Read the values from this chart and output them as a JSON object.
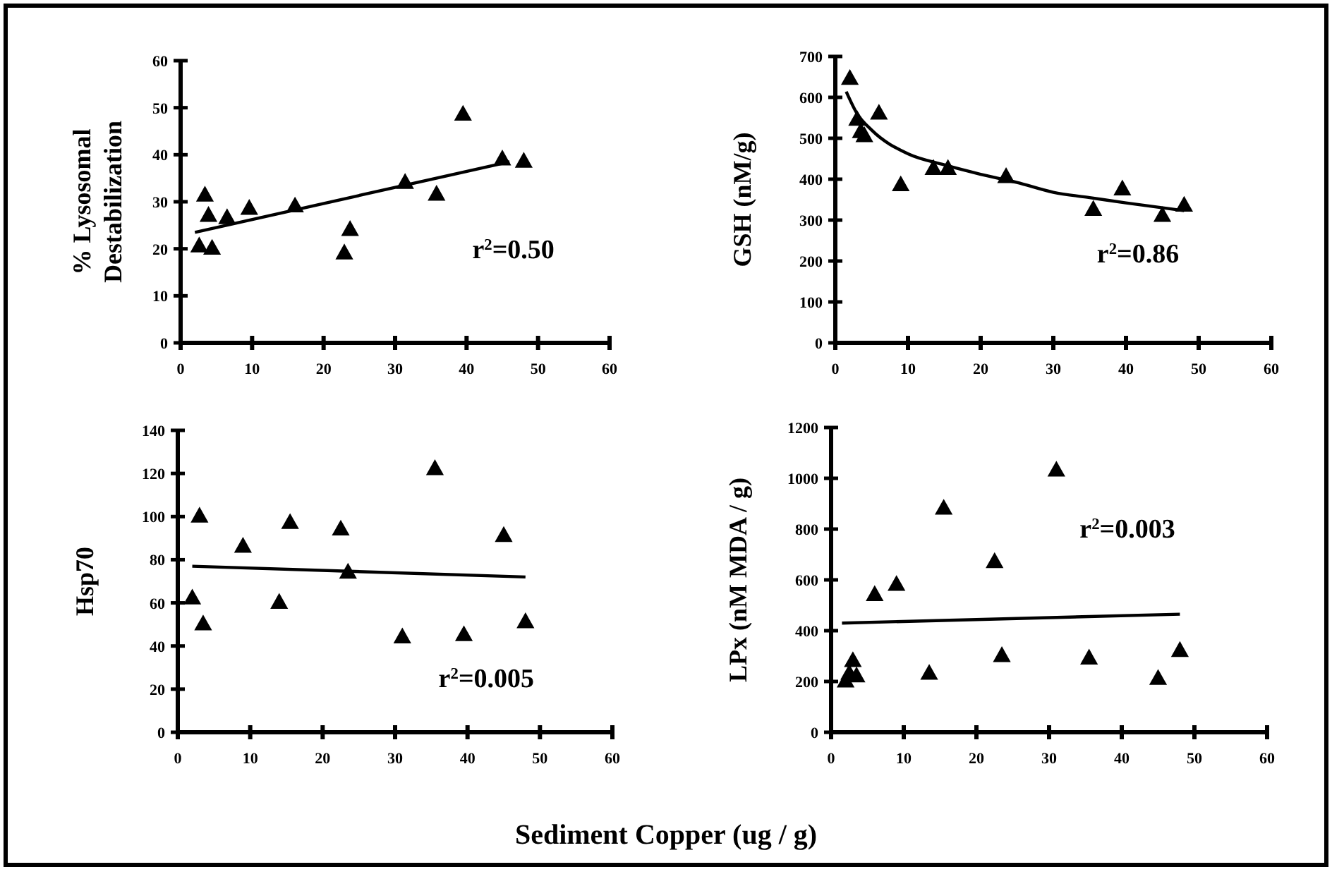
{
  "chart_data": [
    {
      "type": "scatter",
      "ylabel": "% Lysosomal Destabilization",
      "xlim": [
        0,
        60
      ],
      "xticks": [
        0,
        10,
        20,
        30,
        40,
        50,
        60
      ],
      "ylim": [
        0,
        60
      ],
      "yticks": [
        0,
        10,
        20,
        30,
        40,
        50,
        60
      ],
      "annotations": [
        "r$^{2}$=0.50"
      ],
      "series": [
        {
          "color": "#000000",
          "marker": "triangle",
          "x": [
            2.6,
            3.4,
            3.9,
            4.4,
            6.5,
            9.6,
            16,
            22.9,
            23.7,
            31.4,
            35.8,
            39.5,
            45,
            48
          ],
          "values": [
            20.5,
            31.3,
            27,
            20,
            26.5,
            28.5,
            29,
            19,
            24,
            34,
            31.5,
            48.5,
            39,
            38.5
          ]
        },
        {
          "type": "line",
          "marker": "none",
          "color": "#000000",
          "x": [
            2,
            46
          ],
          "values": [
            23.5,
            38.5
          ]
        }
      ]
    },
    {
      "type": "scatter",
      "ylabel": "GSH (nM/g)",
      "xlim": [
        0,
        60
      ],
      "xticks": [
        0,
        10,
        20,
        30,
        40,
        50,
        60
      ],
      "ylim": [
        0,
        700
      ],
      "yticks": [
        0,
        100,
        200,
        300,
        400,
        500,
        600,
        700
      ],
      "annotations": [
        "r$^{2}$=0.86"
      ],
      "series": [
        {
          "color": "#000000",
          "marker": "triangle",
          "x": [
            2,
            3,
            3.5,
            4,
            6,
            9,
            13.5,
            15.5,
            23.5,
            35.5,
            39.5,
            45,
            48
          ],
          "values": [
            645,
            545,
            515,
            505,
            560,
            385,
            425,
            425,
            405,
            325,
            375,
            310,
            335
          ]
        },
        {
          "type": "line",
          "marker": "none",
          "color": "#000000",
          "x": [
            1.5,
            3,
            5,
            10,
            15,
            20,
            25,
            30,
            35,
            40,
            48
          ],
          "values": [
            614,
            560,
            520,
            462,
            435,
            412,
            392,
            368,
            355,
            342,
            323
          ]
        }
      ]
    },
    {
      "type": "scatter",
      "ylabel": "Hsp70",
      "xlabel": "Sediment Copper (ug / g)",
      "xlim": [
        0,
        60
      ],
      "xticks": [
        0,
        10,
        20,
        30,
        40,
        50,
        60
      ],
      "ylim": [
        0,
        140
      ],
      "yticks": [
        0,
        20,
        40,
        60,
        80,
        100,
        120,
        140
      ],
      "annotations": [
        "r$^{2}$=0.005"
      ],
      "series": [
        {
          "color": "#000000",
          "marker": "triangle",
          "x": [
            2,
            3,
            3.5,
            9,
            14,
            15.5,
            22.5,
            23.5,
            31,
            35.5,
            39.5,
            45,
            48
          ],
          "values": [
            62,
            100,
            50,
            86,
            60,
            97,
            94,
            74,
            44,
            122,
            45,
            91,
            51
          ]
        },
        {
          "type": "line",
          "marker": "none",
          "color": "#000000",
          "x": [
            2,
            48
          ],
          "values": [
            77,
            72
          ]
        }
      ]
    },
    {
      "type": "scatter",
      "ylabel": "LPx (nM MDA / g)",
      "xlim": [
        0,
        60
      ],
      "xticks": [
        0,
        10,
        20,
        30,
        40,
        50,
        60
      ],
      "ylim": [
        0,
        1200
      ],
      "yticks": [
        0,
        200,
        400,
        600,
        800,
        1000,
        1200
      ],
      "annotations": [
        "r$^{2}$=0.003"
      ],
      "series": [
        {
          "color": "#000000",
          "marker": "triangle",
          "x": [
            2,
            2.5,
            3,
            3.5,
            6,
            9,
            13.5,
            15.5,
            22.5,
            23.5,
            31,
            35.5,
            45,
            48
          ],
          "values": [
            200,
            230,
            280,
            220,
            540,
            580,
            230,
            880,
            670,
            300,
            1030,
            290,
            210,
            320
          ]
        },
        {
          "type": "line",
          "marker": "none",
          "color": "#000000",
          "x": [
            1.5,
            48
          ],
          "values": [
            430,
            465
          ]
        }
      ]
    }
  ]
}
